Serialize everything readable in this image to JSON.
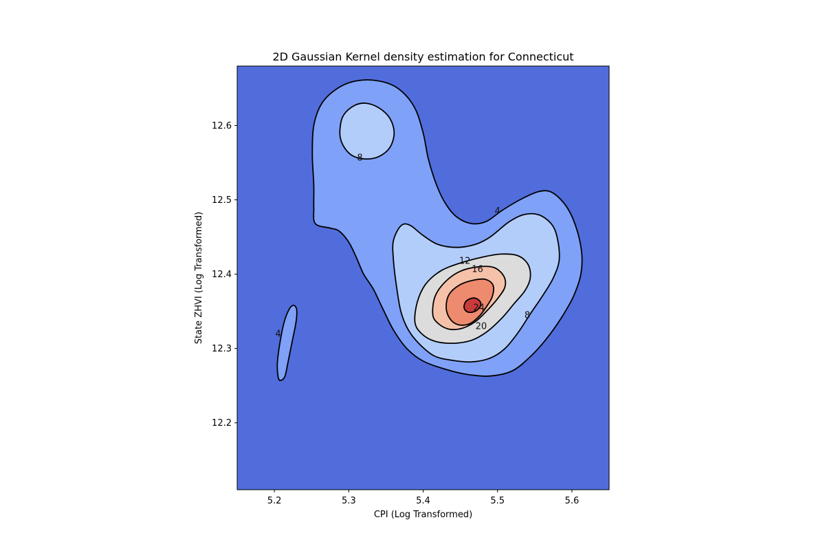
{
  "chart_data": {
    "type": "contour",
    "title": "2D Gaussian Kernel density estimation for Connecticut",
    "xlabel": "CPI (Log Transformed)",
    "ylabel": "State ZHVI (Log Transformed)",
    "xlim": [
      5.15,
      5.65
    ],
    "ylim": [
      12.11,
      12.68
    ],
    "xticks": [
      5.2,
      5.3,
      5.4,
      5.5,
      5.6
    ],
    "yticks": [
      12.2,
      12.3,
      12.4,
      12.5,
      12.6
    ],
    "grid": false,
    "colormap": "coolwarm",
    "level_colors": {
      "below_4": "#516ddb",
      "4_to_8": "#7fa1f7",
      "8_to_12": "#b3cdfb",
      "12_to_16": "#dddcdc",
      "16_to_20": "#f5c1a9",
      "20_to_24": "#ee8a6e",
      "above_24": "#c83b3b"
    },
    "contour_line_color": "#000000",
    "contours": [
      {
        "level": "4",
        "label_points": [
          [
            5.205,
            12.32
          ],
          [
            5.5,
            12.485
          ]
        ],
        "polygons": [
          [
            [
              5.208,
              12.257
            ],
            [
              5.214,
              12.262
            ],
            [
              5.218,
              12.28
            ],
            [
              5.224,
              12.31
            ],
            [
              5.229,
              12.335
            ],
            [
              5.23,
              12.352
            ],
            [
              5.226,
              12.358
            ],
            [
              5.22,
              12.353
            ],
            [
              5.213,
              12.335
            ],
            [
              5.207,
              12.305
            ],
            [
              5.204,
              12.28
            ],
            [
              5.205,
              12.262
            ]
          ],
          [
            [
              5.255,
              12.468
            ],
            [
              5.275,
              12.462
            ],
            [
              5.287,
              12.458
            ],
            [
              5.3,
              12.443
            ],
            [
              5.31,
              12.423
            ],
            [
              5.32,
              12.4
            ],
            [
              5.333,
              12.38
            ],
            [
              5.345,
              12.355
            ],
            [
              5.36,
              12.325
            ],
            [
              5.378,
              12.3
            ],
            [
              5.4,
              12.283
            ],
            [
              5.43,
              12.272
            ],
            [
              5.46,
              12.265
            ],
            [
              5.49,
              12.263
            ],
            [
              5.52,
              12.27
            ],
            [
              5.545,
              12.29
            ],
            [
              5.565,
              12.312
            ],
            [
              5.585,
              12.34
            ],
            [
              5.602,
              12.37
            ],
            [
              5.612,
              12.4
            ],
            [
              5.613,
              12.43
            ],
            [
              5.605,
              12.465
            ],
            [
              5.592,
              12.492
            ],
            [
              5.573,
              12.51
            ],
            [
              5.555,
              12.511
            ],
            [
              5.53,
              12.5
            ],
            [
              5.505,
              12.485
            ],
            [
              5.485,
              12.471
            ],
            [
              5.465,
              12.468
            ],
            [
              5.445,
              12.477
            ],
            [
              5.43,
              12.495
            ],
            [
              5.418,
              12.52
            ],
            [
              5.407,
              12.555
            ],
            [
              5.4,
              12.59
            ],
            [
              5.388,
              12.625
            ],
            [
              5.366,
              12.65
            ],
            [
              5.34,
              12.66
            ],
            [
              5.31,
              12.66
            ],
            [
              5.285,
              12.65
            ],
            [
              5.264,
              12.63
            ],
            [
              5.253,
              12.6
            ],
            [
              5.251,
              12.56
            ],
            [
              5.253,
              12.52
            ],
            [
              5.253,
              12.49
            ]
          ]
        ]
      },
      {
        "level": "8",
        "label_points": [
          [
            5.315,
            12.557
          ],
          [
            5.54,
            12.345
          ]
        ],
        "polygons": [
          [
            [
              5.288,
              12.59
            ],
            [
              5.292,
              12.612
            ],
            [
              5.306,
              12.626
            ],
            [
              5.322,
              12.63
            ],
            [
              5.34,
              12.624
            ],
            [
              5.355,
              12.61
            ],
            [
              5.361,
              12.59
            ],
            [
              5.355,
              12.57
            ],
            [
              5.34,
              12.558
            ],
            [
              5.322,
              12.555
            ],
            [
              5.304,
              12.56
            ],
            [
              5.292,
              12.574
            ]
          ],
          [
            [
              5.36,
              12.445
            ],
            [
              5.37,
              12.465
            ],
            [
              5.382,
              12.466
            ],
            [
              5.4,
              12.452
            ],
            [
              5.42,
              12.44
            ],
            [
              5.445,
              12.436
            ],
            [
              5.47,
              12.44
            ],
            [
              5.49,
              12.45
            ],
            [
              5.515,
              12.47
            ],
            [
              5.535,
              12.48
            ],
            [
              5.555,
              12.48
            ],
            [
              5.572,
              12.468
            ],
            [
              5.58,
              12.45
            ],
            [
              5.583,
              12.42
            ],
            [
              5.575,
              12.395
            ],
            [
              5.56,
              12.37
            ],
            [
              5.545,
              12.348
            ],
            [
              5.528,
              12.322
            ],
            [
              5.51,
              12.3
            ],
            [
              5.49,
              12.287
            ],
            [
              5.465,
              12.282
            ],
            [
              5.44,
              12.284
            ],
            [
              5.415,
              12.29
            ],
            [
              5.395,
              12.306
            ],
            [
              5.38,
              12.325
            ],
            [
              5.37,
              12.35
            ],
            [
              5.364,
              12.385
            ],
            [
              5.36,
              12.42
            ]
          ]
        ]
      },
      {
        "level": "12",
        "label_points": [
          [
            5.456,
            12.418
          ]
        ],
        "polygons": [
          [
            [
              5.389,
              12.335
            ],
            [
              5.392,
              12.362
            ],
            [
              5.403,
              12.386
            ],
            [
              5.423,
              12.404
            ],
            [
              5.45,
              12.415
            ],
            [
              5.48,
              12.423
            ],
            [
              5.505,
              12.427
            ],
            [
              5.527,
              12.425
            ],
            [
              5.541,
              12.413
            ],
            [
              5.544,
              12.395
            ],
            [
              5.537,
              12.378
            ],
            [
              5.522,
              12.36
            ],
            [
              5.505,
              12.34
            ],
            [
              5.485,
              12.322
            ],
            [
              5.465,
              12.311
            ],
            [
              5.44,
              12.307
            ],
            [
              5.415,
              12.31
            ],
            [
              5.398,
              12.32
            ]
          ]
        ]
      },
      {
        "level": "16",
        "label_points": [
          [
            5.473,
            12.407
          ]
        ],
        "polygons": [
          [
            [
              5.413,
              12.345
            ],
            [
              5.416,
              12.37
            ],
            [
              5.43,
              12.39
            ],
            [
              5.45,
              12.404
            ],
            [
              5.475,
              12.41
            ],
            [
              5.495,
              12.409
            ],
            [
              5.508,
              12.398
            ],
            [
              5.51,
              12.383
            ],
            [
              5.5,
              12.367
            ],
            [
              5.485,
              12.35
            ],
            [
              5.47,
              12.336
            ],
            [
              5.452,
              12.327
            ],
            [
              5.435,
              12.326
            ],
            [
              5.421,
              12.333
            ]
          ]
        ]
      },
      {
        "level": "20",
        "label_points": [
          [
            5.478,
            12.33
          ]
        ],
        "polygons": [
          [
            [
              5.431,
              12.355
            ],
            [
              5.435,
              12.373
            ],
            [
              5.45,
              12.386
            ],
            [
              5.468,
              12.392
            ],
            [
              5.484,
              12.393
            ],
            [
              5.494,
              12.385
            ],
            [
              5.493,
              12.37
            ],
            [
              5.485,
              12.356
            ],
            [
              5.475,
              12.343
            ],
            [
              5.462,
              12.333
            ],
            [
              5.447,
              12.332
            ],
            [
              5.436,
              12.34
            ]
          ]
        ]
      },
      {
        "level": "24",
        "label_points": [
          [
            5.475,
            12.355
          ]
        ],
        "polygons": [
          [
            [
              5.455,
              12.355
            ],
            [
              5.458,
              12.364
            ],
            [
              5.468,
              12.368
            ],
            [
              5.476,
              12.364
            ],
            [
              5.477,
              12.357
            ],
            [
              5.47,
              12.35
            ],
            [
              5.46,
              12.349
            ]
          ]
        ]
      }
    ]
  }
}
